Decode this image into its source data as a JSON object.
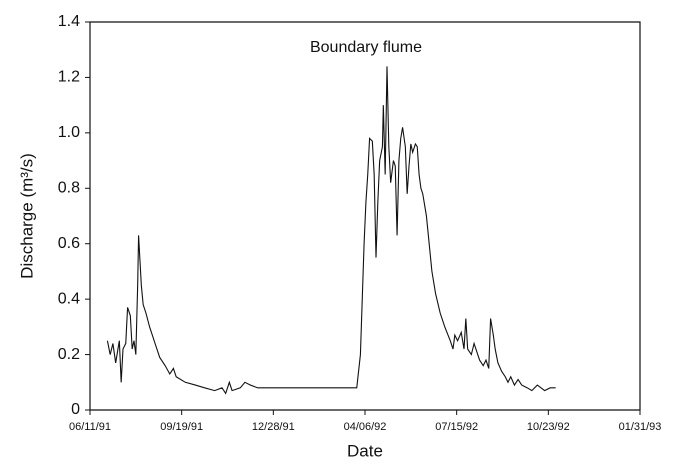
{
  "chart_data": {
    "type": "line",
    "title": "Boundary flume",
    "x_label": "Date",
    "y_label": "Discharge (m³/s)",
    "xlim": [
      "06/11/91",
      "01/31/93"
    ],
    "xticks": [
      "06/11/91",
      "09/19/91",
      "12/28/91",
      "04/06/92",
      "07/15/92",
      "10/23/92",
      "01/31/93"
    ],
    "ylim": [
      0,
      1.4
    ],
    "yticks": [
      0,
      0.2,
      0.4,
      0.6,
      0.8,
      {
        "value": 1,
        "label": "1.0"
      },
      1.2,
      1.4
    ],
    "color": "#111111",
    "x": [
      "06/30/91",
      "07/03/91",
      "07/06/91",
      "07/09/91",
      "07/13/91",
      "07/15/91",
      "07/17/91",
      "07/20/91",
      "07/22/91",
      "07/25/91",
      "07/27/91",
      "07/29/91",
      "07/31/91",
      "08/02/91",
      "08/03/91",
      "08/06/91",
      "08/08/91",
      "08/11/91",
      "08/15/91",
      "08/21/91",
      "08/26/91",
      "09/01/91",
      "09/06/91",
      "09/10/91",
      "09/13/91",
      "09/23/91",
      "10/04/91",
      "10/14/91",
      "10/25/91",
      "11/02/91",
      "11/06/91",
      "11/10/91",
      "11/13/91",
      "11/22/91",
      "11/27/91",
      "12/03/91",
      "12/11/91",
      "01/04/92",
      "01/26/92",
      "02/28/92",
      "03/28/92",
      "04/01/92",
      "04/03/92",
      "04/05/92",
      "04/07/92",
      "04/09/92",
      "04/11/92",
      "04/14/92",
      "04/16/92",
      "04/18/92",
      "04/20/92",
      "04/22/92",
      "04/25/92",
      "04/26/92",
      "04/28/92",
      "04/30/92",
      "05/02/92",
      "05/04/92",
      "05/07/92",
      "05/09/92",
      "05/11/92",
      "05/13/92",
      "05/15/92",
      "05/17/92",
      "05/20/92",
      "05/22/92",
      "05/24/92",
      "05/26/92",
      "05/28/92",
      "05/31/92",
      "06/02/92",
      "06/04/92",
      "06/06/92",
      "06/08/92",
      "06/12/92",
      "06/15/92",
      "06/18/92",
      "06/22/92",
      "06/27/92",
      "07/02/92",
      "07/08/92",
      "07/11/92",
      "07/13/92",
      "07/16/92",
      "07/20/92",
      "07/23/92",
      "07/25/92",
      "07/27/92",
      "07/31/92",
      "08/03/92",
      "08/06/92",
      "08/09/92",
      "08/13/92",
      "08/16/92",
      "08/19/92",
      "08/21/92",
      "08/24/92",
      "08/26/92",
      "08/29/92",
      "09/02/92",
      "09/06/92",
      "09/09/92",
      "09/12/92",
      "09/16/92",
      "09/20/92",
      "09/24/92",
      "09/30/92",
      "10/05/92",
      "10/11/92",
      "10/15/92",
      "10/19/92",
      "10/25/92",
      "10/31/92"
    ],
    "values": [
      0.25,
      0.2,
      0.24,
      0.17,
      0.25,
      0.1,
      0.22,
      0.24,
      0.37,
      0.34,
      0.22,
      0.25,
      0.2,
      0.45,
      0.63,
      0.45,
      0.38,
      0.35,
      0.3,
      0.24,
      0.19,
      0.16,
      0.13,
      0.15,
      0.12,
      0.1,
      0.09,
      0.08,
      0.07,
      0.08,
      0.06,
      0.1,
      0.07,
      0.08,
      0.1,
      0.09,
      0.08,
      0.08,
      0.08,
      0.08,
      0.08,
      0.2,
      0.4,
      0.6,
      0.75,
      0.85,
      0.98,
      0.97,
      0.85,
      0.55,
      0.75,
      0.9,
      0.95,
      1.1,
      0.85,
      1.24,
      0.95,
      0.82,
      0.9,
      0.88,
      0.63,
      0.9,
      0.98,
      1.02,
      0.95,
      0.78,
      0.88,
      0.96,
      0.93,
      0.96,
      0.95,
      0.85,
      0.8,
      0.78,
      0.7,
      0.6,
      0.5,
      0.42,
      0.35,
      0.3,
      0.25,
      0.22,
      0.27,
      0.25,
      0.28,
      0.22,
      0.33,
      0.22,
      0.2,
      0.24,
      0.21,
      0.18,
      0.16,
      0.18,
      0.15,
      0.33,
      0.27,
      0.22,
      0.17,
      0.14,
      0.12,
      0.1,
      0.12,
      0.09,
      0.11,
      0.09,
      0.08,
      0.07,
      0.09,
      0.08,
      0.07,
      0.08,
      0.08
    ]
  }
}
